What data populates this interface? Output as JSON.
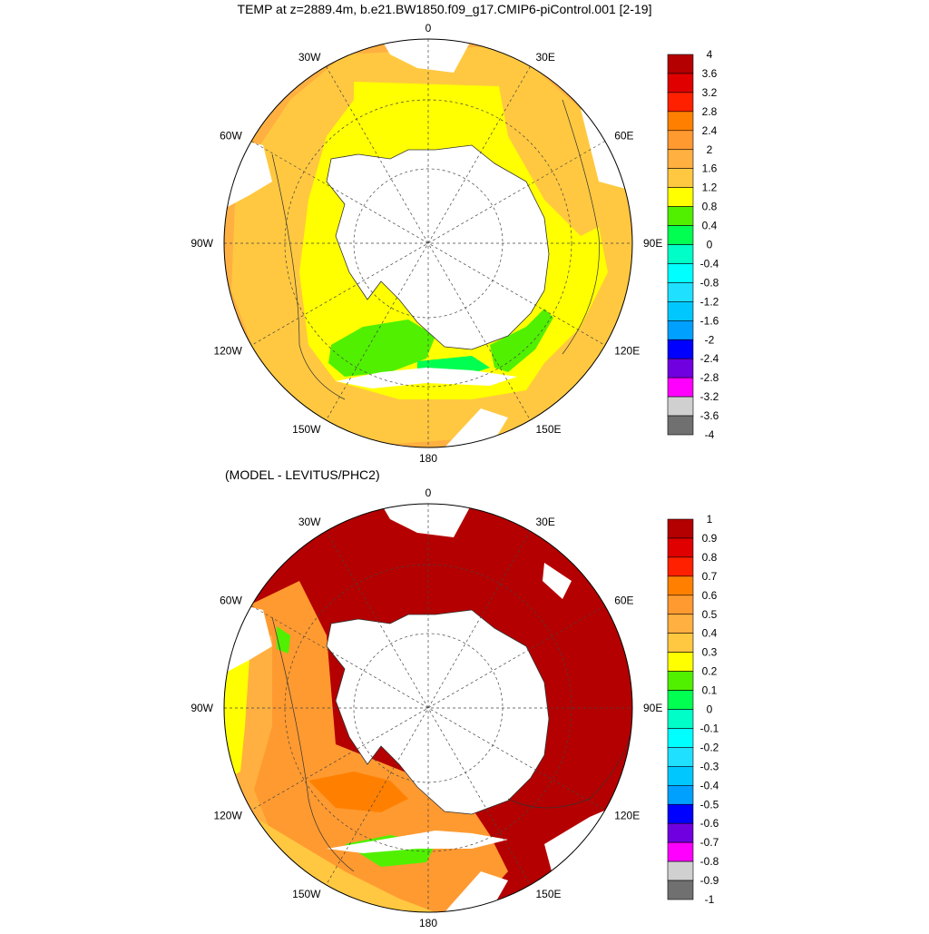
{
  "top_panel": {
    "title": "TEMP at z=2889.4m, b.e21.BW1850.f09_g17.CMIP6-piControl.001 [2-19]",
    "lon_labels": [
      {
        "text": "0",
        "lon": 0
      },
      {
        "text": "30E",
        "lon": 30
      },
      {
        "text": "60E",
        "lon": 60
      },
      {
        "text": "90E",
        "lon": 90
      },
      {
        "text": "120E",
        "lon": 120
      },
      {
        "text": "150E",
        "lon": 150
      },
      {
        "text": "180",
        "lon": 180
      },
      {
        "text": "150W",
        "lon": -150
      },
      {
        "text": "120W",
        "lon": -120
      },
      {
        "text": "90W",
        "lon": -90
      },
      {
        "text": "60W",
        "lon": -60
      },
      {
        "text": "30W",
        "lon": -30
      }
    ],
    "colorbar": {
      "labels": [
        "4",
        "3.6",
        "3.2",
        "2.8",
        "2.4",
        "2",
        "1.6",
        "1.2",
        "0.8",
        "0.4",
        "0",
        "-0.4",
        "-0.8",
        "-1.2",
        "-1.6",
        "-2",
        "-2.4",
        "-2.8",
        "-3.2",
        "-3.6",
        "-4"
      ],
      "colors": [
        "#b40000",
        "#e00000",
        "#ff2000",
        "#ff8000",
        "#ff9a30",
        "#ffb040",
        "#ffc840",
        "#ffff00",
        "#50f000",
        "#00ff50",
        "#00ffc8",
        "#00ffff",
        "#20e0ff",
        "#00c8ff",
        "#00a0ff",
        "#0000ff",
        "#7000e0",
        "#ff00ff",
        "#d0d0d0",
        "#707070"
      ]
    }
  },
  "bottom_panel": {
    "title": "(MODEL - LEVITUS/PHC2)",
    "lon_labels": [
      {
        "text": "0",
        "lon": 0
      },
      {
        "text": "30E",
        "lon": 30
      },
      {
        "text": "60E",
        "lon": 60
      },
      {
        "text": "90E",
        "lon": 90
      },
      {
        "text": "120E",
        "lon": 120
      },
      {
        "text": "150E",
        "lon": 150
      },
      {
        "text": "180",
        "lon": 180
      },
      {
        "text": "150W",
        "lon": -150
      },
      {
        "text": "120W",
        "lon": -120
      },
      {
        "text": "90W",
        "lon": -90
      },
      {
        "text": "60W",
        "lon": -60
      },
      {
        "text": "30W",
        "lon": -30
      }
    ],
    "colorbar": {
      "labels": [
        "1",
        "0.9",
        "0.8",
        "0.7",
        "0.6",
        "0.5",
        "0.4",
        "0.3",
        "0.2",
        "0.1",
        "0",
        "-0.1",
        "-0.2",
        "-0.3",
        "-0.4",
        "-0.5",
        "-0.6",
        "-0.7",
        "-0.8",
        "-0.9",
        "-1"
      ],
      "colors": [
        "#b40000",
        "#e00000",
        "#ff2000",
        "#ff8000",
        "#ff9a30",
        "#ffb040",
        "#ffc840",
        "#ffff00",
        "#50f000",
        "#00ff50",
        "#00ffc8",
        "#00ffff",
        "#20e0ff",
        "#00c8ff",
        "#00a0ff",
        "#0000ff",
        "#7000e0",
        "#ff00ff",
        "#d0d0d0",
        "#707070"
      ]
    }
  }
}
